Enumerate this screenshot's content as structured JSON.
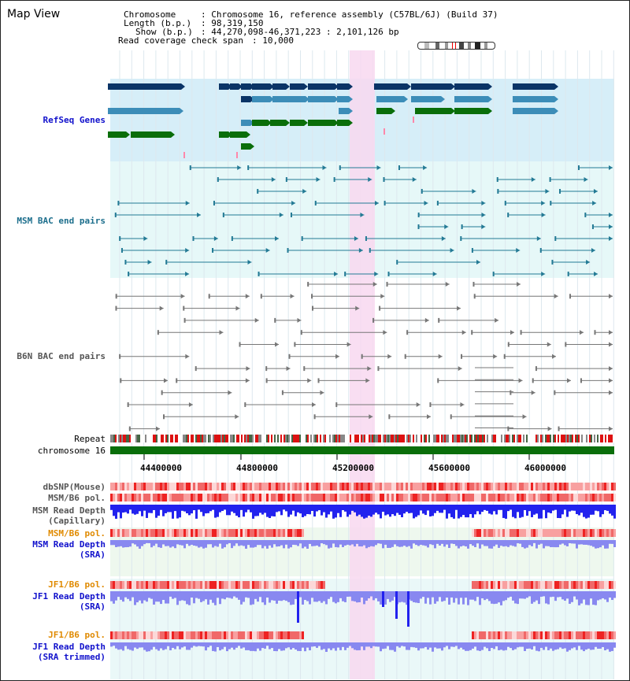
{
  "window": {
    "title": "Map View"
  },
  "header": {
    "chromosome_label": "Chromosome",
    "chromosome_value": ": Chromosome 16, reference assembly (C57BL/6J) (Build 37)",
    "length_label": "Length (b.p.)",
    "length_value": ": 98,319,150",
    "show_label": "Show (b.p.)",
    "show_value": ": 44,270,098-46,371,223 : 2,101,126 bp",
    "span_label": "Read coverage check span",
    "span_value": ": 10,000"
  },
  "tracks": {
    "refseq": "RefSeq Genes",
    "msm_bac": "MSM BAC end pairs",
    "b6n_bac": "B6N BAC end pairs",
    "repeat": "Repeat",
    "chrom": "chromosome 16",
    "dbsnp": "dbSNP(Mouse)",
    "msm_b6_pol": "MSM/B6 pol.",
    "msm_depth_cap_1": "MSM Read Depth",
    "msm_depth_cap_2": "(Capillary)",
    "msm_b6_pol2": "MSM/B6 pol.",
    "msm_depth_sra_1": "MSM Read Depth",
    "msm_depth_sra_2": "(SRA)",
    "jf1_b6_pol": "JF1/B6 pol.",
    "jf1_depth_sra_1": "JF1 Read Depth",
    "jf1_depth_sra_2": "(SRA)",
    "jf1_b6_pol2": "JF1/B6 pol.",
    "jf1_depth_trim_1": "JF1 Read Depth",
    "jf1_depth_trim_2": "(SRA trimmed)"
  },
  "axis": {
    "ticks": [
      "44400000",
      "44800000",
      "45200000",
      "45600000",
      "46000000"
    ]
  },
  "colors": {
    "refseq_bg": "#d6eef8",
    "bac_bg": "#e6f8f8",
    "highlight": "#f8d8f0",
    "dark_blue": "#0a3466",
    "mid_blue": "#3c8db8",
    "green": "#0a6e0a",
    "teal": "#237a95",
    "grey": "#777777",
    "chrom_green": "#0a6e0a",
    "depth_blue": "#2222ee",
    "depth_light": "#8888f0",
    "pink_red": "#f06060"
  }
}
